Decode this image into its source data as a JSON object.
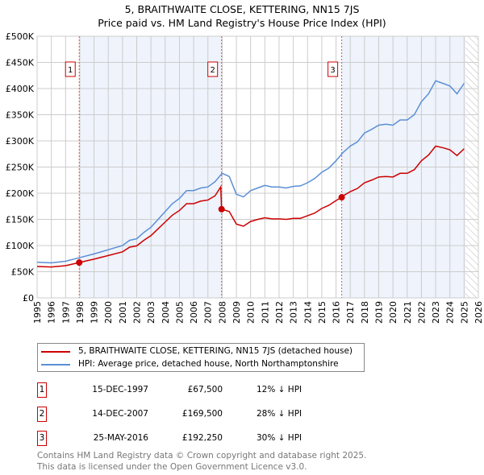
{
  "chart_data": {
    "type": "line",
    "title": "5, BRAITHWAITE CLOSE, KETTERING, NN15 7JS",
    "subtitle": "Price paid vs. HM Land Registry's House Price Index (HPI)",
    "xlim": [
      1995,
      2026
    ],
    "ylim": [
      0,
      500000
    ],
    "x_ticks": [
      "1995",
      "1996",
      "1997",
      "1998",
      "1999",
      "2000",
      "2001",
      "2002",
      "2003",
      "2004",
      "2005",
      "2006",
      "2007",
      "2008",
      "2009",
      "2010",
      "2011",
      "2012",
      "2013",
      "2014",
      "2015",
      "2016",
      "2017",
      "2018",
      "2019",
      "2020",
      "2021",
      "2022",
      "2023",
      "2024",
      "2025",
      "2026"
    ],
    "y_ticks": [
      {
        "v": 0,
        "label": "£0"
      },
      {
        "v": 50000,
        "label": "£50K"
      },
      {
        "v": 100000,
        "label": "£100K"
      },
      {
        "v": 150000,
        "label": "£150K"
      },
      {
        "v": 200000,
        "label": "£200K"
      },
      {
        "v": 250000,
        "label": "£250K"
      },
      {
        "v": 300000,
        "label": "£300K"
      },
      {
        "v": 350000,
        "label": "£350K"
      },
      {
        "v": 400000,
        "label": "£400K"
      },
      {
        "v": 450000,
        "label": "£450K"
      },
      {
        "v": 500000,
        "label": "£500K"
      }
    ],
    "grid": true,
    "shaded_ranges": [
      [
        1997.96,
        2007.96
      ],
      [
        2016.4,
        2025.1
      ]
    ],
    "forecast_hatch_from": 2025.1,
    "series": [
      {
        "name": "5, BRAITHWAITE CLOSE, KETTERING, NN15 7JS (detached house)",
        "color": "#cc0000",
        "x": [
          1995,
          1996,
          1997,
          1997.96,
          1998.5,
          1999,
          2000,
          2001,
          2001.5,
          2002,
          2002.5,
          2003,
          2003.5,
          2004,
          2004.5,
          2005,
          2005.5,
          2006,
          2006.5,
          2007,
          2007.5,
          2007.9,
          2007.96,
          2008.5,
          2009,
          2009.5,
          2010,
          2010.5,
          2011,
          2011.5,
          2012,
          2012.5,
          2013,
          2013.5,
          2014,
          2014.5,
          2015,
          2015.5,
          2016,
          2016.4,
          2016.5,
          2017,
          2017.5,
          2018,
          2018.5,
          2019,
          2019.5,
          2020,
          2020.5,
          2021,
          2021.5,
          2022,
          2022.5,
          2023,
          2023.5,
          2024,
          2024.5,
          2025
        ],
        "y": [
          60000,
          59000,
          61600,
          67500,
          71000,
          74000,
          81000,
          88000,
          97000,
          99400,
          110000,
          119000,
          132000,
          145000,
          158000,
          167000,
          180000,
          180000,
          185000,
          187000,
          195000,
          212000,
          169500,
          165000,
          141000,
          137000,
          146000,
          150000,
          153000,
          151000,
          151000,
          150000,
          152000,
          152000,
          157000,
          162000,
          171000,
          177000,
          186000,
          192250,
          195000,
          203000,
          209000,
          220000,
          225000,
          231000,
          232000,
          231000,
          238000,
          238000,
          245000,
          262000,
          273000,
          290000,
          287000,
          283000,
          272000,
          285000
        ]
      },
      {
        "name": "HPI: Average price, detached house, North Northamptonshire",
        "color": "#5b8fd4",
        "x": [
          1995,
          1996,
          1997,
          1998,
          1999,
          2000,
          2001,
          2001.5,
          2002,
          2002.5,
          2003,
          2003.5,
          2004,
          2004.5,
          2005,
          2005.5,
          2006,
          2006.5,
          2007,
          2007.5,
          2008,
          2008.5,
          2009,
          2009.5,
          2010,
          2010.5,
          2011,
          2011.5,
          2012,
          2012.5,
          2013,
          2013.5,
          2014,
          2014.5,
          2015,
          2015.5,
          2016,
          2016.5,
          2017,
          2017.5,
          2018,
          2018.5,
          2019,
          2019.5,
          2020,
          2020.5,
          2021,
          2021.5,
          2022,
          2022.5,
          2023,
          2023.5,
          2024,
          2024.5,
          2025
        ],
        "y": [
          68000,
          67000,
          70000,
          77000,
          84000,
          92000,
          100000,
          110000,
          113000,
          125000,
          135000,
          150000,
          165000,
          180000,
          190000,
          205000,
          205000,
          210000,
          212000,
          222000,
          238000,
          232000,
          198000,
          193000,
          205000,
          210000,
          215000,
          212000,
          212000,
          210000,
          213000,
          214000,
          220000,
          228000,
          240000,
          248000,
          262000,
          278000,
          290000,
          298000,
          315000,
          322000,
          330000,
          332000,
          330000,
          340000,
          340000,
          350000,
          375000,
          390000,
          415000,
          410000,
          405000,
          390000,
          410000
        ]
      }
    ],
    "sales": [
      {
        "n": "1",
        "x": 1997.96,
        "y": 67500
      },
      {
        "n": "2",
        "x": 2007.96,
        "y": 169500
      },
      {
        "n": "3",
        "x": 2016.4,
        "y": 192250
      }
    ]
  },
  "legend": [
    "5, BRAITHWAITE CLOSE, KETTERING, NN15 7JS (detached house)",
    "HPI: Average price, detached house, North Northamptonshire"
  ],
  "table": [
    {
      "n": "1",
      "date": "15-DEC-1997",
      "price": "£67,500",
      "hpi": "12% ↓ HPI"
    },
    {
      "n": "2",
      "date": "14-DEC-2007",
      "price": "£169,500",
      "hpi": "28% ↓ HPI"
    },
    {
      "n": "3",
      "date": "25-MAY-2016",
      "price": "£192,250",
      "hpi": "30% ↓ HPI"
    }
  ],
  "footer": [
    "Contains HM Land Registry data © Crown copyright and database right 2025.",
    "This data is licensed under the Open Government Licence v3.0."
  ]
}
